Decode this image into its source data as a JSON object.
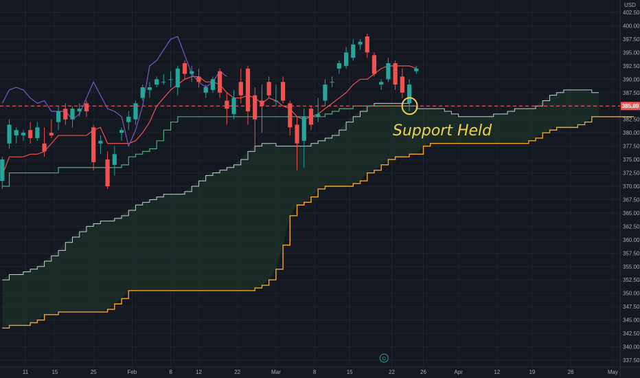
{
  "chart_data": {
    "type": "candlestick",
    "currency": "USD",
    "y_ticks": [
      "402.50",
      "400.00",
      "397.50",
      "395.00",
      "392.50",
      "390.00",
      "387.50",
      "385.00",
      "382.50",
      "380.00",
      "377.50",
      "375.00",
      "372.50",
      "370.00",
      "367.50",
      "365.00",
      "362.50",
      "360.00",
      "357.50",
      "355.00",
      "352.50",
      "350.00",
      "347.50",
      "345.00",
      "342.50",
      "340.00",
      "337.50"
    ],
    "ylim": [
      336.5,
      403.5
    ],
    "x_ticks": [
      "11",
      "15",
      "25",
      "Feb",
      "8",
      "12",
      "22",
      "Mar",
      "8",
      "15",
      "22",
      "26",
      "Apr",
      "12",
      "19",
      "26",
      "May"
    ],
    "price_line": {
      "value": 385.0,
      "label": "385.00",
      "color": "#ef5350"
    },
    "annotation": "Support Held",
    "colors": {
      "up": "#26a69a",
      "down": "#ef5350",
      "tenkan": "#ef5350",
      "kijun": "#4caf7d",
      "chikou": "#7e57c2",
      "span_a": "#c8cdd4",
      "span_b": "#f5a623",
      "cloud": "#1f3a2c"
    },
    "candles": [
      {
        "date": "Jan 11",
        "open": 371.0,
        "high": 375.5,
        "low": 369.5,
        "close": 375.0
      },
      {
        "date": "Jan 12",
        "open": 378.0,
        "high": 382.5,
        "low": 377.0,
        "close": 381.5
      },
      {
        "date": "Jan 13",
        "open": 379.5,
        "high": 381.0,
        "low": 378.0,
        "close": 380.5
      },
      {
        "date": "Jan 14",
        "open": 379.5,
        "high": 380.5,
        "low": 378.5,
        "close": 380.0
      },
      {
        "date": "Jan 15",
        "open": 380.5,
        "high": 382.0,
        "low": 378.0,
        "close": 379.0
      },
      {
        "date": "Jan 19",
        "open": 379.0,
        "high": 382.0,
        "low": 378.5,
        "close": 381.0
      },
      {
        "date": "Jan 20",
        "open": 378.0,
        "high": 381.0,
        "low": 375.5,
        "close": 376.5
      },
      {
        "date": "Jan 21",
        "open": 380.0,
        "high": 382.5,
        "low": 379.0,
        "close": 379.5
      },
      {
        "date": "Jan 22",
        "open": 382.0,
        "high": 385.0,
        "low": 380.5,
        "close": 384.0
      },
      {
        "date": "Jan 25",
        "open": 384.5,
        "high": 385.5,
        "low": 381.5,
        "close": 382.5
      },
      {
        "date": "Jan 26",
        "open": 382.5,
        "high": 385.0,
        "low": 381.0,
        "close": 384.5
      },
      {
        "date": "Jan 27",
        "open": 384.0,
        "high": 385.5,
        "low": 383.0,
        "close": 384.5
      },
      {
        "date": "Jan 28",
        "open": 385.5,
        "high": 386.0,
        "low": 383.0,
        "close": 384.0
      },
      {
        "date": "Jan 29",
        "open": 381.0,
        "high": 381.5,
        "low": 373.0,
        "close": 374.5
      },
      {
        "date": "Feb 1",
        "open": 378.0,
        "high": 379.5,
        "low": 376.0,
        "close": 378.5
      },
      {
        "date": "Feb 2",
        "open": 375.0,
        "high": 376.5,
        "low": 369.5,
        "close": 370.0
      },
      {
        "date": "Feb 3",
        "open": 374.0,
        "high": 377.5,
        "low": 372.0,
        "close": 376.0
      },
      {
        "date": "Feb 4",
        "open": 380.0,
        "high": 381.0,
        "low": 378.5,
        "close": 380.5
      },
      {
        "date": "Feb 5",
        "open": 382.0,
        "high": 384.0,
        "low": 380.5,
        "close": 383.0
      },
      {
        "date": "Feb 8",
        "open": 382.5,
        "high": 386.0,
        "low": 381.5,
        "close": 385.5
      },
      {
        "date": "Feb 9",
        "open": 386.5,
        "high": 389.0,
        "low": 386.0,
        "close": 388.5
      },
      {
        "date": "Feb 10",
        "open": 388.0,
        "high": 389.5,
        "low": 386.5,
        "close": 388.5
      },
      {
        "date": "Feb 11",
        "open": 389.0,
        "high": 390.5,
        "low": 388.5,
        "close": 390.0
      },
      {
        "date": "Feb 12",
        "open": 389.5,
        "high": 391.0,
        "low": 389.0,
        "close": 389.5
      },
      {
        "date": "Feb 16",
        "open": 390.0,
        "high": 391.5,
        "low": 388.5,
        "close": 390.0
      },
      {
        "date": "Feb 17",
        "open": 388.5,
        "high": 392.5,
        "low": 387.0,
        "close": 392.0
      },
      {
        "date": "Feb 18",
        "open": 393.0,
        "high": 393.5,
        "low": 390.0,
        "close": 391.0
      },
      {
        "date": "Feb 19",
        "open": 391.0,
        "high": 392.5,
        "low": 389.5,
        "close": 391.5
      },
      {
        "date": "Feb 22",
        "open": 390.5,
        "high": 392.0,
        "low": 388.5,
        "close": 389.5
      },
      {
        "date": "Feb 23",
        "open": 387.5,
        "high": 389.0,
        "low": 386.5,
        "close": 388.5
      },
      {
        "date": "Feb 24",
        "open": 388.0,
        "high": 390.5,
        "low": 387.5,
        "close": 390.0
      },
      {
        "date": "Feb 25",
        "open": 391.5,
        "high": 392.0,
        "low": 386.5,
        "close": 387.5
      },
      {
        "date": "Feb 26",
        "open": 386.0,
        "high": 387.5,
        "low": 381.5,
        "close": 384.5
      },
      {
        "date": "Mar 1",
        "open": 383.5,
        "high": 388.0,
        "low": 382.5,
        "close": 386.5
      },
      {
        "date": "Mar 2",
        "open": 389.5,
        "high": 392.0,
        "low": 385.5,
        "close": 387.0
      },
      {
        "date": "Mar 3",
        "open": 392.0,
        "high": 392.5,
        "low": 381.5,
        "close": 384.0
      },
      {
        "date": "Mar 4",
        "open": 387.0,
        "high": 388.5,
        "low": 377.5,
        "close": 382.5
      },
      {
        "date": "Mar 5",
        "open": 386.0,
        "high": 389.0,
        "low": 380.0,
        "close": 385.0
      },
      {
        "date": "Mar 8",
        "open": 389.5,
        "high": 390.5,
        "low": 386.5,
        "close": 387.0
      },
      {
        "date": "Mar 9",
        "open": 386.0,
        "high": 389.0,
        "low": 385.0,
        "close": 386.0
      },
      {
        "date": "Mar 10",
        "open": 389.5,
        "high": 390.5,
        "low": 385.5,
        "close": 386.0
      },
      {
        "date": "Mar 11",
        "open": 385.5,
        "high": 386.0,
        "low": 379.5,
        "close": 381.0
      },
      {
        "date": "Mar 12",
        "open": 381.5,
        "high": 383.0,
        "low": 373.0,
        "close": 378.0
      },
      {
        "date": "Mar 15",
        "open": 378.5,
        "high": 384.5,
        "low": 373.5,
        "close": 383.0
      },
      {
        "date": "Mar 16",
        "open": 384.5,
        "high": 385.0,
        "low": 380.5,
        "close": 381.5
      },
      {
        "date": "Mar 17",
        "open": 383.0,
        "high": 386.5,
        "low": 382.0,
        "close": 383.5
      },
      {
        "date": "Mar 18",
        "open": 386.0,
        "high": 390.0,
        "low": 385.0,
        "close": 389.0
      },
      {
        "date": "Mar 19",
        "open": 389.5,
        "high": 390.5,
        "low": 388.5,
        "close": 389.5
      },
      {
        "date": "Mar 22",
        "open": 392.0,
        "high": 393.5,
        "low": 391.0,
        "close": 393.0
      },
      {
        "date": "Mar 23",
        "open": 392.5,
        "high": 396.0,
        "low": 392.0,
        "close": 395.0
      },
      {
        "date": "Mar 24",
        "open": 394.0,
        "high": 397.5,
        "low": 393.5,
        "close": 396.5
      },
      {
        "date": "Mar 25",
        "open": 396.5,
        "high": 397.5,
        "low": 395.5,
        "close": 397.0
      },
      {
        "date": "Mar 26",
        "open": 398.0,
        "high": 398.5,
        "low": 394.0,
        "close": 395.0
      },
      {
        "date": "Mar 29",
        "open": 394.5,
        "high": 395.0,
        "low": 390.5,
        "close": 391.0
      },
      {
        "date": "Mar 30",
        "open": 389.0,
        "high": 390.0,
        "low": 388.0,
        "close": 389.5
      },
      {
        "date": "Mar 31",
        "open": 390.0,
        "high": 394.0,
        "low": 389.5,
        "close": 393.0
      },
      {
        "date": "Apr 1",
        "open": 393.0,
        "high": 393.5,
        "low": 388.0,
        "close": 389.0
      },
      {
        "date": "Apr 5",
        "open": 390.5,
        "high": 392.0,
        "low": 386.5,
        "close": 387.5
      },
      {
        "date": "Apr 6",
        "open": 385.5,
        "high": 390.0,
        "low": 384.0,
        "close": 389.0
      },
      {
        "date": "Apr 7",
        "open": 391.5,
        "high": 392.5,
        "low": 391.0,
        "close": 392.0
      }
    ],
    "tenkan": [
      372.0,
      375.5,
      375.5,
      375.5,
      376.0,
      376.0,
      376.5,
      378.0,
      379.5,
      379.5,
      379.5,
      379.5,
      379.5,
      380.5,
      381.0,
      378.0,
      378.0,
      378.0,
      378.0,
      378.5,
      380.0,
      382.0,
      385.0,
      386.5,
      388.0,
      389.0,
      390.0,
      390.5,
      390.5,
      389.5,
      389.5,
      389.0,
      387.5,
      386.5,
      386.5,
      387.0,
      386.5,
      385.5,
      386.5,
      386.0,
      385.0,
      384.5,
      383.0,
      382.5,
      383.0,
      383.5,
      384.5,
      385.5,
      386.5,
      387.5,
      389.0,
      390.0,
      390.0,
      391.0,
      392.0,
      392.5,
      392.5,
      392.5,
      392.5,
      392.0
    ],
    "kijun": [
      370.0,
      372.5,
      372.5,
      372.5,
      372.5,
      372.5,
      372.5,
      372.5,
      373.5,
      373.5,
      373.5,
      373.5,
      373.5,
      373.5,
      373.5,
      373.5,
      373.5,
      374.0,
      375.5,
      376.0,
      376.5,
      377.0,
      378.5,
      380.5,
      382.0,
      383.0,
      383.0,
      383.0,
      383.0,
      383.0,
      383.0,
      383.0,
      383.0,
      383.0,
      383.0,
      383.0,
      383.0,
      383.0,
      383.0,
      383.0,
      383.0,
      383.0,
      383.0,
      383.0,
      383.0,
      383.0,
      383.5,
      384.0,
      384.5,
      384.5,
      385.0,
      385.0,
      385.0,
      385.0,
      385.0,
      385.0,
      385.0,
      385.0,
      385.0,
      385.0
    ],
    "chikou": [
      385.5,
      388.0,
      388.5,
      388.0,
      386.5,
      385.5,
      386.0,
      384.0,
      384.0,
      384.0,
      382.5,
      383.5,
      386.5,
      389.5,
      387.0,
      384.5,
      384.0,
      383.0,
      377.5,
      380.5,
      385.0,
      392.5,
      393.5,
      395.5,
      397.5,
      398.0,
      394.5,
      391.0,
      389.5,
      388.5,
      389.5,
      391.5,
      390.5
    ],
    "span_a": [
      352.5,
      353.5,
      353.5,
      354.0,
      354.5,
      355.0,
      356.0,
      357.0,
      358.0,
      359.5,
      360.5,
      361.5,
      362.5,
      363.0,
      363.5,
      363.5,
      364.0,
      364.5,
      365.5,
      366.5,
      367.0,
      367.5,
      368.0,
      368.5,
      368.5,
      368.5,
      369.0,
      370.0,
      371.0,
      372.0,
      372.5,
      373.0,
      373.5,
      374.0,
      375.0,
      376.5,
      377.5,
      378.0,
      378.0,
      377.5,
      377.5,
      377.5,
      377.5,
      377.5,
      378.0,
      378.5,
      379.0,
      379.5,
      380.5,
      382.0,
      383.0,
      384.0,
      385.0,
      385.5,
      385.5,
      385.5,
      385.5,
      385.5,
      385.0,
      384.5,
      384.5,
      384.5,
      384.5,
      384.0,
      383.5,
      383.0,
      383.0,
      383.0,
      383.0,
      383.0,
      383.5,
      383.5,
      384.0,
      384.5,
      384.5,
      384.5,
      385.0,
      386.0,
      387.0,
      387.5,
      388.0,
      388.0,
      388.0,
      388.0,
      387.5,
      387.5
    ],
    "span_b": [
      343.5,
      344.0,
      344.0,
      344.0,
      344.5,
      345.0,
      346.0,
      346.0,
      346.5,
      346.5,
      346.5,
      346.5,
      346.5,
      346.5,
      346.5,
      347.0,
      348.0,
      349.0,
      350.5,
      350.5,
      350.5,
      350.5,
      350.5,
      350.5,
      350.5,
      350.5,
      350.5,
      350.5,
      350.5,
      350.5,
      350.5,
      350.5,
      350.5,
      350.5,
      350.5,
      350.5,
      351.0,
      351.5,
      352.5,
      354.5,
      359.0,
      364.5,
      366.5,
      367.0,
      368.0,
      369.5,
      370.0,
      370.0,
      370.0,
      370.0,
      370.5,
      371.0,
      372.5,
      373.0,
      374.0,
      375.0,
      375.5,
      375.5,
      376.0,
      376.0,
      377.5,
      378.0,
      378.0,
      378.0,
      378.0,
      378.0,
      378.0,
      378.0,
      378.0,
      378.0,
      378.0,
      378.0,
      378.0,
      378.0,
      378.0,
      378.5,
      379.0,
      380.0,
      380.5,
      381.0,
      381.0,
      381.0,
      381.5,
      382.0,
      383.0,
      383.0,
      383.0,
      383.0,
      383.0,
      383.0,
      383.0
    ]
  }
}
